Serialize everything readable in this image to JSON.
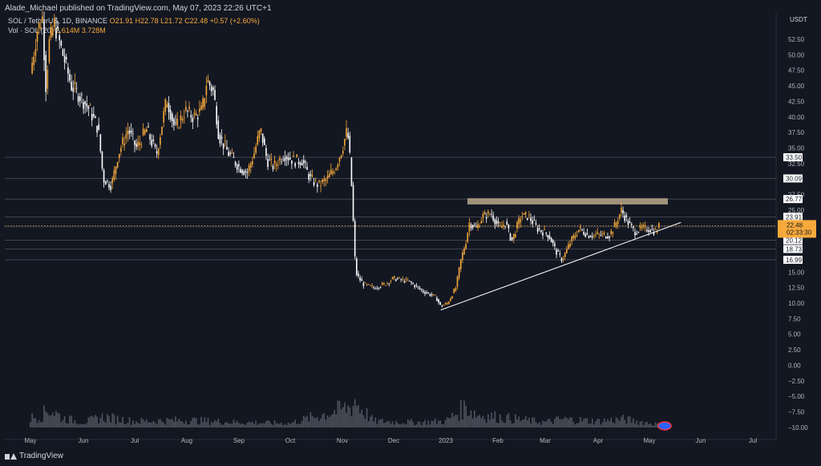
{
  "header": {
    "publish_line": "Alade_Michael published on TradingView.com, May 07, 2023 22:26 UTC+1"
  },
  "legend": {
    "symbol": "SOL / TetherUS, 1D, BINANCE",
    "ohlc": "O21.91 H22.78 L21.72 C22.48 +0.57 (+2.60%)",
    "volume_label": "Vol · SOL (20)",
    "volume_values": "2.614M 3.728M"
  },
  "footer": {
    "brand": "TradingView"
  },
  "colors": {
    "background": "#131722",
    "up_candle": "#f7a93b",
    "down_candle": "#ffffff",
    "volume": "#5d606b",
    "resistance_zone": "#b8a88a",
    "current_price": "#f7a93b"
  },
  "chart_data": {
    "type": "candlestick",
    "symbol": "SOL/USDT",
    "interval": "1D",
    "currency_label": "USDT",
    "y_ticks": [
      "52.50",
      "50.00",
      "47.50",
      "45.00",
      "42.50",
      "40.00",
      "37.50",
      "35.00",
      "32.50",
      "27.50",
      "25.00",
      "15.00",
      "12.50",
      "10.00",
      "7.50",
      "5.00",
      "2.50",
      "0.00",
      "−2.50",
      "−5.00",
      "−7.50",
      "−10.00"
    ],
    "x_ticks": [
      "May",
      "Jun",
      "Jul",
      "Aug",
      "Sep",
      "Oct",
      "Nov",
      "Dec",
      "2023",
      "Feb",
      "Mar",
      "Apr",
      "May",
      "Jun",
      "Jul"
    ],
    "price_levels": [
      {
        "label": "33.50",
        "value": 33.5
      },
      {
        "label": "30.09",
        "value": 30.09
      },
      {
        "label": "26.77",
        "value": 26.77
      },
      {
        "label": "23.91",
        "value": 23.91
      },
      {
        "label": "22.29",
        "value": 22.29
      },
      {
        "label": "20.12",
        "value": 20.12
      },
      {
        "label": "18.73",
        "value": 18.73
      },
      {
        "label": "16.99",
        "value": 16.99
      }
    ],
    "current_price": {
      "label": "22.48",
      "countdown": "02:33:30",
      "value": 22.48
    },
    "resistance_zone": {
      "low": 25.9,
      "high": 26.9
    },
    "trendline": {
      "start": {
        "date": "Dec 29",
        "value": 8.9
      },
      "end": {
        "date": "May 20",
        "value": 23.0
      }
    },
    "price_path": [
      [
        "May 1",
        47
      ],
      [
        "May 5",
        54
      ],
      [
        "May 8",
        56
      ],
      [
        "May 10",
        45
      ],
      [
        "May 12",
        52
      ],
      [
        "May 15",
        55
      ],
      [
        "May 20",
        50
      ],
      [
        "May 25",
        45
      ],
      [
        "May 31",
        43
      ],
      [
        "Jun 5",
        41
      ],
      [
        "Jun 10",
        38
      ],
      [
        "Jun 13",
        30
      ],
      [
        "Jun 18",
        29
      ],
      [
        "Jun 22",
        34
      ],
      [
        "Jun 28",
        38
      ],
      [
        "Jul 2",
        35
      ],
      [
        "Jul 8",
        38
      ],
      [
        "Jul 14",
        34
      ],
      [
        "Jul 20",
        43
      ],
      [
        "Jul 25",
        38
      ],
      [
        "Jul 31",
        41
      ],
      [
        "Aug 5",
        40
      ],
      [
        "Aug 10",
        41
      ],
      [
        "Aug 13",
        46
      ],
      [
        "Aug 17",
        44
      ],
      [
        "Aug 20",
        37
      ],
      [
        "Aug 26",
        34
      ],
      [
        "Sep 1",
        32
      ],
      [
        "Sep 6",
        31
      ],
      [
        "Sep 10",
        34
      ],
      [
        "Sep 14",
        38
      ],
      [
        "Sep 18",
        33
      ],
      [
        "Sep 22",
        32
      ],
      [
        "Sep 28",
        34
      ],
      [
        "Oct 3",
        33
      ],
      [
        "Oct 8",
        33
      ],
      [
        "Oct 13",
        30
      ],
      [
        "Oct 18",
        29
      ],
      [
        "Oct 23",
        30
      ],
      [
        "Oct 28",
        32
      ],
      [
        "Nov 1",
        35
      ],
      [
        "Nov 4",
        38
      ],
      [
        "Nov 6",
        32
      ],
      [
        "Nov 9",
        15
      ],
      [
        "Nov 11",
        14
      ],
      [
        "Nov 14",
        13
      ],
      [
        "Nov 20",
        12.5
      ],
      [
        "Nov 26",
        13
      ],
      [
        "Dec 1",
        14
      ],
      [
        "Dec 10",
        13.5
      ],
      [
        "Dec 18",
        12
      ],
      [
        "Dec 26",
        11
      ],
      [
        "Dec 29",
        9.5
      ],
      [
        "Jan 2",
        10
      ],
      [
        "Jan 7",
        12.5
      ],
      [
        "Jan 10",
        17
      ],
      [
        "Jan 13",
        20
      ],
      [
        "Jan 15",
        23
      ],
      [
        "Jan 19",
        22
      ],
      [
        "Jan 23",
        24
      ],
      [
        "Jan 28",
        24.5
      ],
      [
        "Feb 2",
        22
      ],
      [
        "Feb 6",
        23
      ],
      [
        "Feb 10",
        20
      ],
      [
        "Feb 16",
        24
      ],
      [
        "Feb 21",
        24
      ],
      [
        "Feb 27",
        22
      ],
      [
        "Mar 3",
        21
      ],
      [
        "Mar 8",
        18
      ],
      [
        "Mar 11",
        17
      ],
      [
        "Mar 16",
        20
      ],
      [
        "Mar 21",
        22
      ],
      [
        "Mar 26",
        21
      ],
      [
        "Mar 31",
        21
      ],
      [
        "Apr 4",
        21
      ],
      [
        "Apr 8",
        21
      ],
      [
        "Apr 12",
        23
      ],
      [
        "Apr 15",
        25
      ],
      [
        "Apr 19",
        23
      ],
      [
        "Apr 23",
        21.5
      ],
      [
        "Apr 27",
        22
      ],
      [
        "May 1",
        22
      ],
      [
        "May 5",
        21.5
      ],
      [
        "May 7",
        22.48
      ]
    ],
    "volume_profile": [
      [
        "May 1",
        0.09
      ],
      [
        "May 8",
        0.12
      ],
      [
        "May 12",
        0.18
      ],
      [
        "May 20",
        0.09
      ],
      [
        "Jun 1",
        0.05
      ],
      [
        "Jun 13",
        0.1
      ],
      [
        "Jul 1",
        0.06
      ],
      [
        "Aug 1",
        0.07
      ],
      [
        "Sep 1",
        0.05
      ],
      [
        "Oct 1",
        0.04
      ],
      [
        "Nov 7",
        0.2
      ],
      [
        "Nov 9",
        0.28
      ],
      [
        "Nov 10",
        0.22
      ],
      [
        "Nov 20",
        0.06
      ],
      [
        "Dec 15",
        0.05
      ],
      [
        "Jan 1",
        0.06
      ],
      [
        "Jan 13",
        0.2
      ],
      [
        "Jan 20",
        0.12
      ],
      [
        "Feb 1",
        0.1
      ],
      [
        "Mar 1",
        0.05
      ],
      [
        "Mar 11",
        0.08
      ],
      [
        "Apr 1",
        0.06
      ],
      [
        "Apr 15",
        0.08
      ],
      [
        "May 7",
        0.03
      ]
    ]
  }
}
